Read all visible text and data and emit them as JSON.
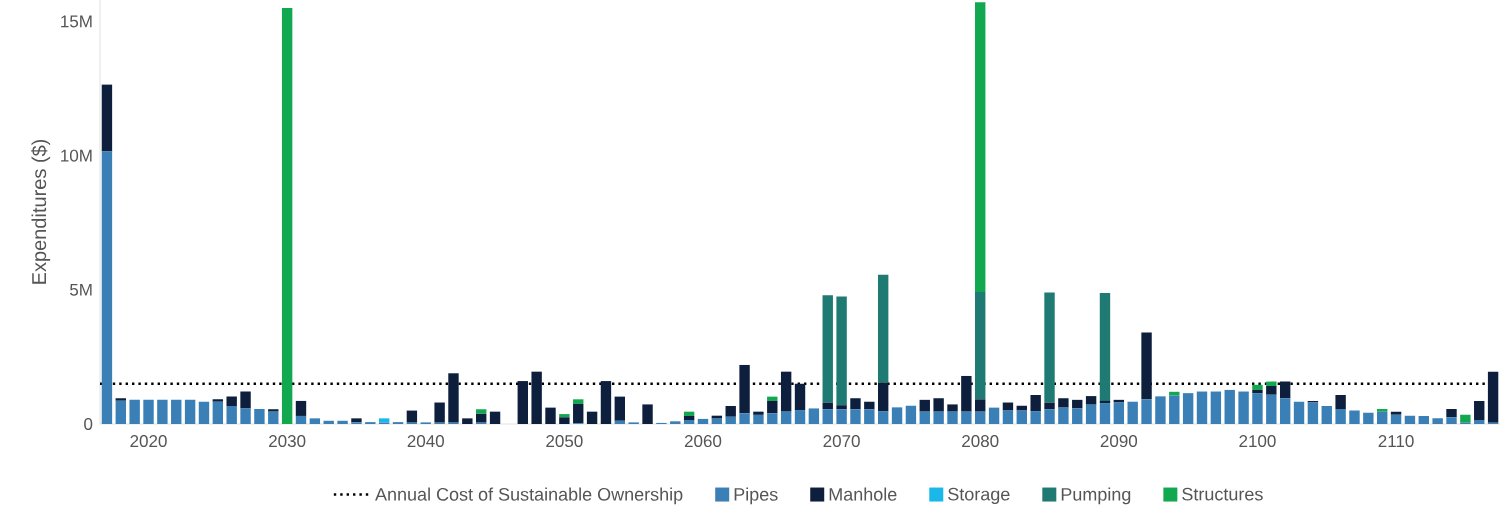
{
  "chart_data": {
    "type": "bar",
    "stacked": true,
    "ylabel": "Expenditures ($)",
    "x": [
      2017,
      2018,
      2019,
      2020,
      2021,
      2022,
      2023,
      2024,
      2025,
      2026,
      2027,
      2028,
      2029,
      2030,
      2031,
      2032,
      2033,
      2034,
      2035,
      2036,
      2037,
      2038,
      2039,
      2040,
      2041,
      2042,
      2043,
      2044,
      2045,
      2046,
      2047,
      2048,
      2049,
      2050,
      2051,
      2052,
      2053,
      2054,
      2055,
      2056,
      2057,
      2058,
      2059,
      2060,
      2061,
      2062,
      2063,
      2064,
      2065,
      2066,
      2067,
      2068,
      2069,
      2070,
      2071,
      2072,
      2073,
      2074,
      2075,
      2076,
      2077,
      2078,
      2079,
      2080,
      2081,
      2082,
      2083,
      2084,
      2085,
      2086,
      2087,
      2088,
      2089,
      2090,
      2091,
      2092,
      2093,
      2094,
      2095,
      2096,
      2097,
      2098,
      2099,
      2100,
      2101,
      2102,
      2103,
      2104,
      2105,
      2106,
      2107,
      2108,
      2109,
      2110,
      2111,
      2112,
      2113,
      2114,
      2115,
      2116,
      2117
    ],
    "xlim": [
      2016.5,
      2117.5
    ],
    "xticks": [
      2020,
      2030,
      2040,
      2050,
      2060,
      2070,
      2080,
      2090,
      2100,
      2110
    ],
    "ylim": [
      0,
      15800000
    ],
    "yticks": [
      {
        "value": 0,
        "label": "0"
      },
      {
        "value": 5000000,
        "label": "5M"
      },
      {
        "value": 10000000,
        "label": "10M"
      },
      {
        "value": 15000000,
        "label": "15M"
      }
    ],
    "legend": "bottom",
    "ref_lines": [
      {
        "axis": "y",
        "value": 1500000,
        "label": "Annual Cost of Sustainable Ownership",
        "color": "#000000",
        "line_style": "dotted"
      }
    ],
    "series": [
      {
        "name": "Pipes",
        "color": "#3a7fb5",
        "values": [
          10150000,
          870000,
          900000,
          900000,
          900000,
          900000,
          900000,
          830000,
          830000,
          670000,
          580000,
          560000,
          460000,
          0,
          300000,
          210000,
          120000,
          120000,
          60000,
          70000,
          50000,
          70000,
          50000,
          60000,
          50000,
          50000,
          0,
          50000,
          0,
          0,
          0,
          0,
          0,
          0,
          30000,
          0,
          0,
          120000,
          60000,
          0,
          40000,
          100000,
          150000,
          190000,
          200000,
          270000,
          400000,
          340000,
          400000,
          460000,
          520000,
          580000,
          550000,
          550000,
          550000,
          550000,
          480000,
          620000,
          680000,
          460000,
          460000,
          460000,
          460000,
          460000,
          610000,
          500000,
          500000,
          480000,
          550000,
          610000,
          580000,
          720000,
          780000,
          800000,
          830000,
          920000,
          1030000,
          1060000,
          1150000,
          1210000,
          1210000,
          1270000,
          1210000,
          1150000,
          1090000,
          960000,
          830000,
          800000,
          670000,
          560000,
          500000,
          420000,
          460000,
          340000,
          310000,
          300000,
          210000,
          250000,
          50000,
          150000,
          50000
        ]
      },
      {
        "name": "Manhole",
        "color": "#0d1f3c",
        "values": [
          2500000,
          90000,
          0,
          0,
          0,
          0,
          0,
          0,
          90000,
          350000,
          630000,
          0,
          90000,
          0,
          560000,
          0,
          0,
          0,
          150000,
          0,
          0,
          0,
          450000,
          0,
          750000,
          1840000,
          210000,
          330000,
          460000,
          0,
          1600000,
          1950000,
          610000,
          250000,
          720000,
          460000,
          1600000,
          900000,
          0,
          730000,
          0,
          0,
          150000,
          0,
          110000,
          400000,
          1800000,
          120000,
          460000,
          1490000,
          980000,
          0,
          250000,
          150000,
          410000,
          280000,
          1060000,
          0,
          0,
          440000,
          500000,
          270000,
          1330000,
          460000,
          0,
          300000,
          180000,
          600000,
          250000,
          350000,
          320000,
          320000,
          80000,
          100000,
          0,
          2490000,
          0,
          0,
          0,
          0,
          0,
          0,
          0,
          120000,
          330000,
          620000,
          0,
          60000,
          0,
          520000,
          0,
          0,
          0,
          120000,
          0,
          0,
          0,
          310000,
          0,
          710000,
          1900000
        ]
      },
      {
        "name": "Storage",
        "color": "#1ab8e8",
        "values": [
          0,
          0,
          0,
          0,
          0,
          0,
          0,
          0,
          0,
          0,
          0,
          0,
          0,
          0,
          0,
          0,
          0,
          0,
          0,
          0,
          160000,
          0,
          0,
          0,
          0,
          0,
          0,
          0,
          0,
          0,
          0,
          0,
          0,
          0,
          0,
          0,
          0,
          0,
          0,
          0,
          0,
          0,
          0,
          0,
          0,
          0,
          0,
          0,
          0,
          0,
          0,
          0,
          0,
          0,
          0,
          0,
          0,
          0,
          0,
          0,
          0,
          0,
          0,
          0,
          0,
          0,
          0,
          0,
          0,
          0,
          0,
          0,
          0,
          0,
          0,
          0,
          0,
          0,
          0,
          0,
          0,
          0,
          0,
          0,
          0,
          0,
          0,
          0,
          0,
          0,
          0,
          0,
          0,
          0,
          0,
          0,
          0,
          0,
          0,
          0,
          0
        ]
      },
      {
        "name": "Pumping",
        "color": "#1f7a73",
        "values": [
          0,
          0,
          0,
          0,
          0,
          0,
          0,
          0,
          0,
          0,
          0,
          0,
          0,
          0,
          0,
          0,
          0,
          0,
          0,
          0,
          0,
          0,
          0,
          0,
          0,
          0,
          0,
          0,
          0,
          0,
          0,
          0,
          0,
          0,
          0,
          0,
          0,
          0,
          0,
          0,
          0,
          0,
          0,
          0,
          0,
          0,
          0,
          0,
          0,
          0,
          0,
          0,
          4000000,
          4050000,
          0,
          0,
          4020000,
          0,
          0,
          0,
          0,
          0,
          0,
          4000000,
          0,
          0,
          0,
          0,
          4100000,
          0,
          0,
          0,
          4020000,
          0,
          0,
          0,
          0,
          0,
          0,
          0,
          0,
          0,
          0,
          0,
          0,
          0,
          0,
          0,
          0,
          0,
          0,
          0,
          0,
          0,
          0,
          0,
          0,
          0,
          0,
          0,
          0
        ]
      },
      {
        "name": "Structures",
        "color": "#12a84f",
        "values": [
          0,
          0,
          0,
          0,
          0,
          0,
          0,
          0,
          0,
          0,
          0,
          0,
          0,
          15500000,
          0,
          0,
          0,
          0,
          0,
          0,
          0,
          0,
          0,
          0,
          0,
          0,
          0,
          170000,
          0,
          0,
          0,
          0,
          0,
          120000,
          170000,
          0,
          0,
          0,
          0,
          0,
          0,
          0,
          160000,
          0,
          0,
          0,
          0,
          0,
          160000,
          0,
          0,
          0,
          0,
          0,
          0,
          0,
          0,
          0,
          0,
          0,
          0,
          0,
          0,
          10800000,
          0,
          0,
          0,
          0,
          0,
          0,
          0,
          0,
          0,
          0,
          0,
          0,
          0,
          140000,
          0,
          0,
          0,
          0,
          0,
          190000,
          160000,
          0,
          0,
          0,
          0,
          0,
          0,
          0,
          100000,
          0,
          0,
          0,
          0,
          0,
          290000,
          0,
          0
        ]
      }
    ]
  }
}
